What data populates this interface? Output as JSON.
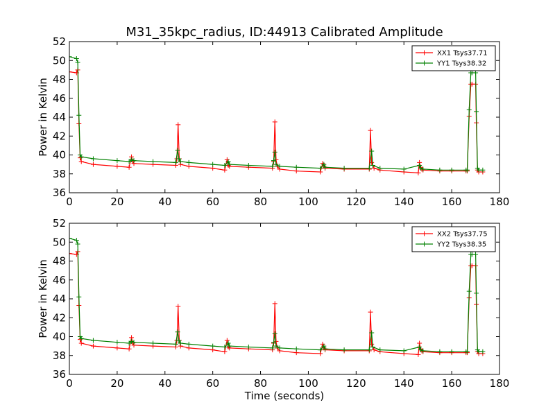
{
  "figure": {
    "title": "M31_35kpc_radius, ID:44913 Calibrated Amplitude",
    "xlabel": "Time (seconds)"
  },
  "chart_data": [
    {
      "type": "line",
      "xlabel": "",
      "ylabel": "Power in Kelvin",
      "xlim": [
        0,
        180
      ],
      "ylim": [
        36,
        52
      ],
      "xticks": [
        0,
        20,
        40,
        60,
        80,
        100,
        120,
        140,
        160,
        180
      ],
      "yticks": [
        36,
        38,
        40,
        42,
        44,
        46,
        48,
        50,
        52
      ],
      "grid": false,
      "legend": "top-right",
      "series": [
        {
          "name": "XX1 Tsys37.71",
          "color": "#ff0000",
          "x": [
            0,
            3,
            3.5,
            4,
            4.5,
            5,
            10,
            20,
            25,
            26,
            26.5,
            27,
            35,
            44.5,
            45,
            45.5,
            46,
            46.5,
            50,
            60,
            65,
            66,
            66.5,
            67,
            75,
            85,
            85.5,
            86,
            86.5,
            87,
            88,
            95,
            105,
            106,
            106.5,
            107,
            115,
            125.5,
            126,
            126.5,
            127,
            127.5,
            130,
            140,
            146,
            146.5,
            147,
            147.5,
            148,
            155,
            160,
            166,
            166.5,
            167.3,
            168,
            168.5,
            170,
            170.3,
            170.8,
            171.3,
            173
          ],
          "y": [
            48.8,
            48.7,
            49.0,
            43.3,
            39.7,
            39.3,
            39.0,
            38.8,
            38.7,
            39.8,
            39.3,
            39.1,
            39.0,
            38.9,
            39.6,
            43.2,
            39.6,
            39.0,
            38.8,
            38.6,
            38.4,
            39.5,
            38.9,
            38.8,
            38.7,
            38.6,
            39.3,
            43.5,
            39.5,
            38.8,
            38.5,
            38.3,
            38.2,
            39.1,
            38.8,
            38.6,
            38.5,
            38.5,
            42.6,
            39.2,
            38.9,
            38.6,
            38.4,
            38.2,
            38.1,
            39.2,
            38.7,
            38.5,
            38.4,
            38.3,
            38.3,
            38.3,
            38.3,
            44.1,
            47.5,
            47.5,
            47.5,
            43.4,
            38.4,
            38.2,
            38.2
          ]
        },
        {
          "name": "YY1 Tsys38.32",
          "color": "#008000",
          "x": [
            0,
            3,
            3.5,
            4,
            4.5,
            5,
            10,
            20,
            25,
            26,
            27,
            35,
            44.5,
            45.3,
            45.8,
            46.5,
            50,
            60,
            65,
            66.5,
            67,
            75,
            85,
            85.5,
            86,
            86.5,
            88,
            95,
            105,
            106.5,
            107,
            115,
            125.5,
            126.5,
            127,
            130,
            140,
            146.5,
            147,
            148,
            155,
            160,
            166,
            166.5,
            167.3,
            168,
            168.5,
            170,
            170.3,
            170.8,
            171.3,
            173
          ],
          "y": [
            50.4,
            50.2,
            49.8,
            44.2,
            40.0,
            39.8,
            39.6,
            39.4,
            39.3,
            39.5,
            39.4,
            39.3,
            39.2,
            40.5,
            39.6,
            39.3,
            39.2,
            39.0,
            38.9,
            39.3,
            39.0,
            38.9,
            38.8,
            39.4,
            40.3,
            39.0,
            38.8,
            38.7,
            38.6,
            39.0,
            38.7,
            38.6,
            38.6,
            40.4,
            38.9,
            38.6,
            38.5,
            38.9,
            38.6,
            38.5,
            38.4,
            38.4,
            38.4,
            38.4,
            44.8,
            48.7,
            48.7,
            48.7,
            44.6,
            38.6,
            38.4,
            38.4
          ]
        }
      ]
    },
    {
      "type": "line",
      "xlabel": "Time (seconds)",
      "ylabel": "Power in Kelvin",
      "xlim": [
        0,
        180
      ],
      "ylim": [
        36,
        52
      ],
      "xticks": [
        0,
        20,
        40,
        60,
        80,
        100,
        120,
        140,
        160,
        180
      ],
      "yticks": [
        36,
        38,
        40,
        42,
        44,
        46,
        48,
        50,
        52
      ],
      "grid": false,
      "legend": "top-right",
      "series": [
        {
          "name": "XX2 Tsys37.75",
          "color": "#ff0000",
          "x": [
            0,
            3,
            3.5,
            4,
            4.5,
            5,
            10,
            20,
            25,
            26,
            26.5,
            27,
            35,
            44.5,
            45,
            45.5,
            46,
            46.5,
            50,
            60,
            65,
            66,
            66.5,
            67,
            75,
            85,
            85.5,
            86,
            86.5,
            87,
            88,
            95,
            105,
            106,
            106.5,
            107,
            115,
            125.5,
            126,
            126.5,
            127,
            127.5,
            130,
            140,
            146,
            146.5,
            147,
            147.5,
            148,
            155,
            160,
            166,
            166.5,
            167.3,
            168,
            168.5,
            170,
            170.3,
            170.8,
            171.3,
            173
          ],
          "y": [
            48.8,
            48.7,
            49.0,
            43.3,
            39.7,
            39.3,
            39.0,
            38.8,
            38.7,
            39.9,
            39.3,
            39.1,
            39.0,
            38.9,
            39.6,
            43.2,
            39.6,
            39.0,
            38.8,
            38.6,
            38.4,
            39.6,
            38.9,
            38.8,
            38.7,
            38.6,
            39.3,
            43.5,
            39.5,
            38.8,
            38.5,
            38.3,
            38.2,
            39.2,
            38.8,
            38.6,
            38.5,
            38.5,
            42.6,
            39.2,
            38.9,
            38.6,
            38.4,
            38.2,
            38.1,
            39.3,
            38.7,
            38.5,
            38.4,
            38.3,
            38.3,
            38.3,
            38.3,
            44.1,
            47.5,
            47.5,
            47.5,
            43.4,
            38.4,
            38.2,
            38.2
          ]
        },
        {
          "name": "YY2 Tsys38.35",
          "color": "#008000",
          "x": [
            0,
            3,
            3.5,
            4,
            4.5,
            5,
            10,
            20,
            25,
            26,
            27,
            35,
            44.5,
            45.3,
            45.8,
            46.5,
            50,
            60,
            65,
            66.5,
            67,
            75,
            85,
            85.5,
            86,
            86.5,
            88,
            95,
            105,
            106.5,
            107,
            115,
            125.5,
            126.5,
            127,
            130,
            140,
            146.5,
            147,
            148,
            155,
            160,
            166,
            166.5,
            167.3,
            168,
            168.5,
            170,
            170.3,
            170.8,
            171.3,
            173
          ],
          "y": [
            50.4,
            50.2,
            49.8,
            44.2,
            40.0,
            39.8,
            39.6,
            39.4,
            39.3,
            39.5,
            39.4,
            39.3,
            39.2,
            40.5,
            39.6,
            39.3,
            39.2,
            39.0,
            38.9,
            39.3,
            39.0,
            38.9,
            38.8,
            39.4,
            40.3,
            39.0,
            38.8,
            38.7,
            38.6,
            39.0,
            38.7,
            38.6,
            38.6,
            40.4,
            38.9,
            38.6,
            38.5,
            38.9,
            38.6,
            38.5,
            38.4,
            38.4,
            38.4,
            38.4,
            44.8,
            48.7,
            48.7,
            48.7,
            44.6,
            38.6,
            38.4,
            38.4
          ]
        }
      ]
    }
  ]
}
